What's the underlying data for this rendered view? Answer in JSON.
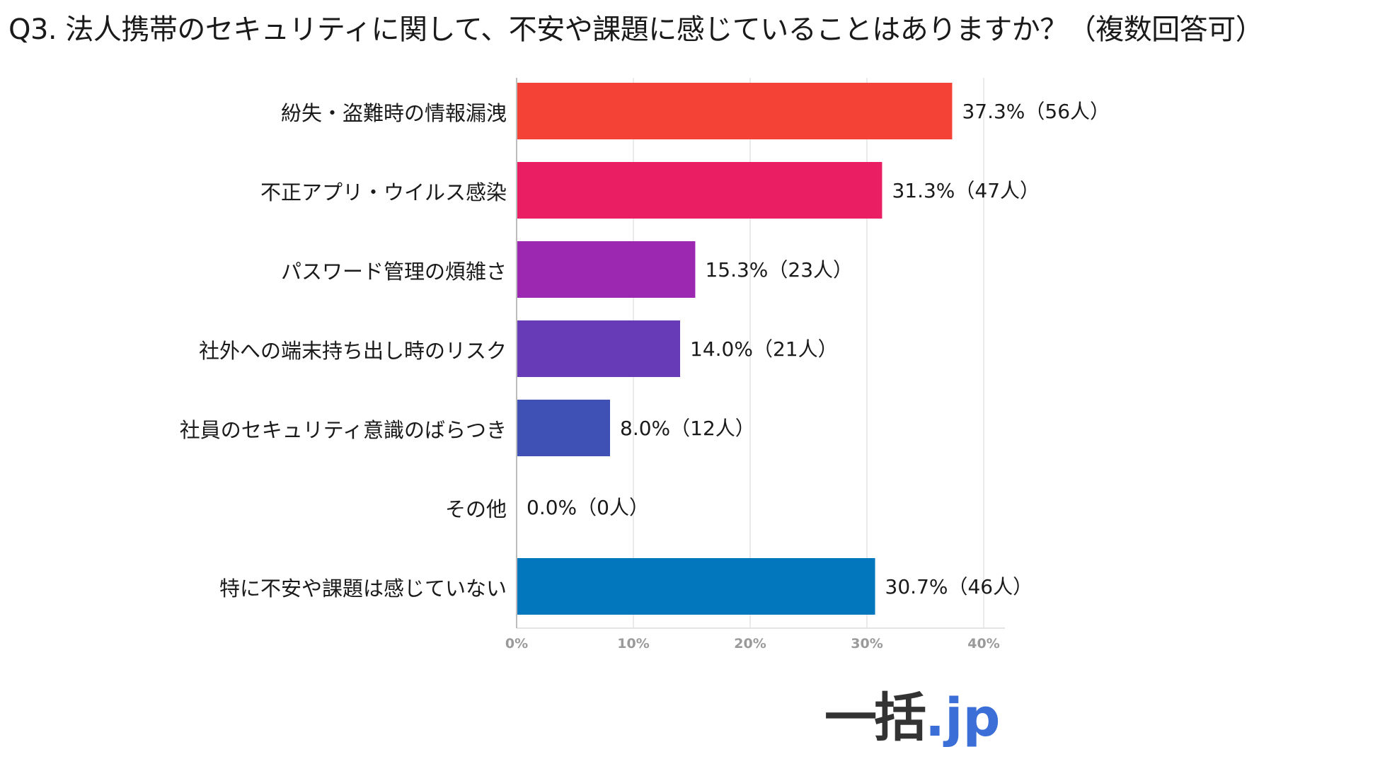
{
  "chart_data": {
    "type": "bar",
    "orientation": "horizontal",
    "title": "Q3. 法人携帯のセキュリティに関して、不安や課題に感じていることはありますか？（複数回答可）",
    "categories": [
      "紛失・盗難時の情報漏洩",
      "不正アプリ・ウイルス感染",
      "パスワード管理の煩雑さ",
      "社外への端末持ち出し時のリスク",
      "社員のセキュリティ意識のばらつき",
      "その他",
      "特に不安や課題は感じていない"
    ],
    "values": [
      37.3,
      31.3,
      15.3,
      14.0,
      8.0,
      0.0,
      30.7
    ],
    "data_labels": [
      "37.3%（56人）",
      "31.3%（47人）",
      "15.3%（23人）",
      "14.0%（21人）",
      "8.0%（12人）",
      "0.0%（0人）",
      "30.7%（46人）"
    ],
    "colors": [
      "#f44336",
      "#e91e63",
      "#9c27b0",
      "#673ab7",
      "#3f51b5",
      "#2196f3",
      "#0277bd"
    ],
    "xlim": [
      0,
      40
    ],
    "x_ticks": [
      0,
      10,
      20,
      30,
      40
    ],
    "x_tick_labels": [
      "0%",
      "10%",
      "20%",
      "30%",
      "40%"
    ],
    "grid": true,
    "xlabel": "",
    "ylabel": ""
  },
  "logo": {
    "main": "一括",
    "suffix": ".jp"
  }
}
